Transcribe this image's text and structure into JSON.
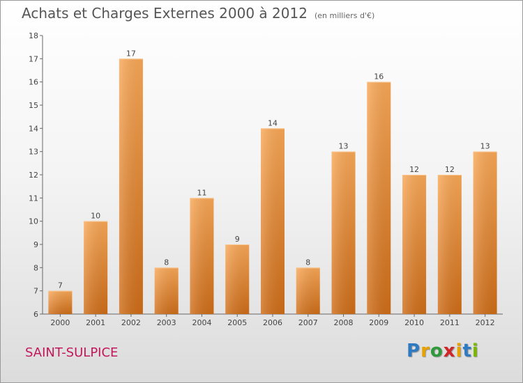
{
  "title": "Achats et Charges Externes 2000 à 2012",
  "unit": "(en milliers d'€)",
  "commune": "SAINT-SULPICE",
  "logo": {
    "letters": [
      "P",
      "r",
      "o",
      "x",
      "i",
      "t",
      "i"
    ],
    "colors": [
      "#2e7bc4",
      "#e8a200",
      "#2e9a3a",
      "#d0262a",
      "#e8a200",
      "#2e7bc4",
      "#7ab800"
    ]
  },
  "chart_data": {
    "type": "bar",
    "categories": [
      "2000",
      "2001",
      "2002",
      "2003",
      "2004",
      "2005",
      "2006",
      "2007",
      "2008",
      "2009",
      "2010",
      "2011",
      "2012"
    ],
    "values": [
      7,
      10,
      17,
      8,
      11,
      9,
      14,
      8,
      13,
      16,
      12,
      12,
      13
    ],
    "data_labels": [
      "7",
      "10",
      "17",
      "8",
      "11",
      "9",
      "14",
      "8",
      "13",
      "16",
      "12",
      "12",
      "13"
    ],
    "yticks": [
      6,
      7,
      8,
      9,
      10,
      11,
      12,
      13,
      14,
      15,
      16,
      17,
      18
    ],
    "ylim": [
      6,
      18
    ],
    "grid": false,
    "bar_color": "#f0902a"
  }
}
